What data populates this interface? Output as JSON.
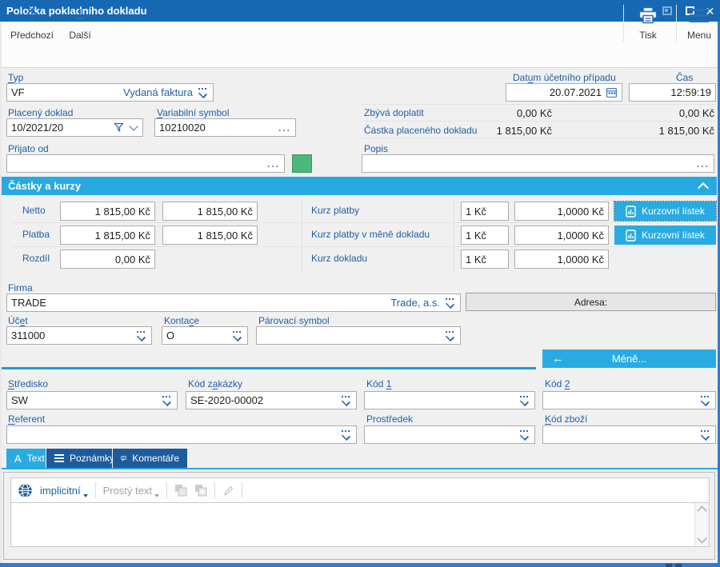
{
  "colors": {
    "titlebar_blue": "#1668b3",
    "accent_cyan": "#29abe2",
    "tab_inactive_blue": "#1d5c9c",
    "label_blue": "#1f5fa8",
    "divider_cyan": "#1d9bd7",
    "green_button": "#4db779",
    "window_border_blue": "#2f7ad2"
  },
  "window": {
    "title": "Položka pokladního dokladu"
  },
  "toolbar": {
    "previous": "Předchozí",
    "next": "Další",
    "print": "Tisk",
    "menu": "Menu"
  },
  "header_fields": {
    "typ": {
      "label": {
        "text": "Typ",
        "accel": 0
      },
      "code": "VF",
      "name": "Vydaná faktura"
    },
    "datum": {
      "label": {
        "text": "Datum účetního případu",
        "accel": 3
      },
      "value": "20.07.2021"
    },
    "cas": {
      "label": {
        "text": "Čas",
        "accel": -1
      },
      "value": "12:59:19"
    },
    "placeny_doklad": {
      "label": {
        "text": "Placený doklad",
        "accel": -1
      },
      "value": "10/2021/20"
    },
    "variabilni_symbol": {
      "label": {
        "text": "Variabilní symbol",
        "accel": 0
      },
      "value": "10210020"
    },
    "zbyva_doplatit": {
      "label": "Zbývá doplatit",
      "value_doc": "0,00 Kč",
      "value_payment": "0,00 Kč"
    },
    "castka_placeneho_dokladu": {
      "label": "Částka placeného dokladu",
      "value_doc": "1 815,00 Kč",
      "value_payment": "1 815,00 Kč"
    },
    "prijato_od": {
      "label": "Přijato od",
      "value": ""
    },
    "popis": {
      "label": "Popis",
      "value": ""
    }
  },
  "amounts": {
    "section_title": "Částky a kurzy",
    "netto": {
      "label": "Netto",
      "v1": "1 815,00 Kč",
      "v2": "1 815,00 Kč"
    },
    "platba": {
      "label": "Platba",
      "v1": "1 815,00 Kč",
      "v2": "1 815,00 Kč"
    },
    "rozdil": {
      "label": "Rozdíl",
      "v1": "0,00 Kč"
    },
    "kurz_platby": {
      "label": "Kurz platby",
      "unit": "1 Kč",
      "rate": "1,0000 Kč"
    },
    "kurz_platby_mena": {
      "label": "Kurz platby v měně dokladu",
      "unit": "1 Kč",
      "rate": "1,0000 Kč"
    },
    "kurz_dokladu": {
      "label": "Kurz dokladu",
      "unit": "1 Kč",
      "rate": "1,0000 Kč"
    },
    "kurzovni_listek": "Kurzovní lístek"
  },
  "company": {
    "firma": {
      "label": "Firma",
      "code": "TRADE",
      "name": "Trade, a.s."
    },
    "adresa_label": "Adresa:",
    "ucet": {
      "label": {
        "text": "Účet",
        "accel": 2
      },
      "value": "311000"
    },
    "kontace": {
      "label": {
        "text": "Kontace",
        "accel": 5
      },
      "value": "O"
    },
    "parovaci_symbol": {
      "label": "Párovací symbol",
      "value": ""
    },
    "mene_button": "Méně..."
  },
  "codes": {
    "stredisko": {
      "label": {
        "text": "Středisko",
        "accel": 0
      },
      "value": "SW"
    },
    "kod_zakazky": {
      "label": {
        "text": "Kód zakázky",
        "accel": 5
      },
      "value": "SE-2020-00002"
    },
    "kod1": {
      "label": {
        "text": "Kód 1",
        "accel": 4
      },
      "value": ""
    },
    "kod2": {
      "label": {
        "text": "Kód 2",
        "accel": 4
      },
      "value": ""
    },
    "referent": {
      "label": {
        "text": "Referent",
        "accel": 0
      },
      "value": ""
    },
    "prostredek": {
      "label": "Prostředek",
      "value": ""
    },
    "kod_zbozi": {
      "label": {
        "text": "Kód zboží",
        "accel": 0
      },
      "value": ""
    }
  },
  "tabs": {
    "text": "Text",
    "poznamky": "Poznámky",
    "komentare": "Komentáře"
  },
  "text_toolbar": {
    "language": "implicitní",
    "format": "Prostý text"
  },
  "icons": {
    "ellipsis": "...",
    "back_arrow": "←",
    "close_glyph": "✕",
    "text_tab_glyph": "A"
  }
}
